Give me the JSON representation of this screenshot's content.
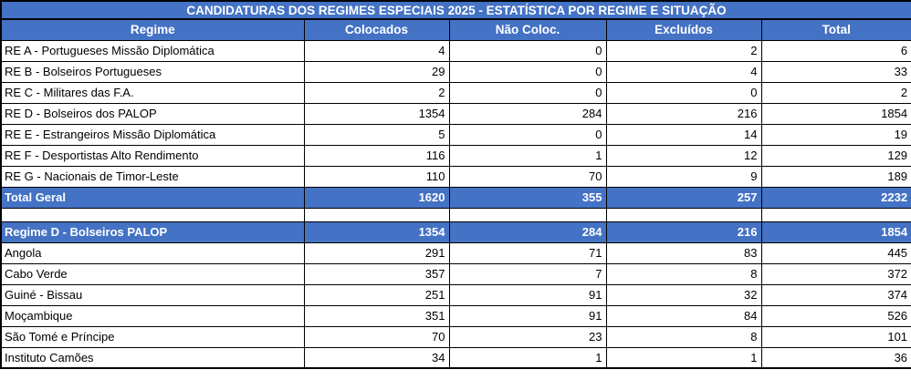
{
  "title": "CANDIDATURAS DOS REGIMES ESPECIAIS 2025 - ESTATÍSTICA POR REGIME E SITUAÇÃO",
  "columns": [
    "Regime",
    "Colocados",
    "Não Coloc.",
    "Excluídos",
    "Total"
  ],
  "colors": {
    "accent_blue": "#4472C4",
    "grid_border": "#000000",
    "summary_text": "#FFFFFF"
  },
  "rows": [
    {
      "style": "normal",
      "label": "RE A - Portugueses Missão Diplomática",
      "values": [
        "4",
        "0",
        "2",
        "6"
      ]
    },
    {
      "style": "normal",
      "label": "RE B - Bolseiros Portugueses",
      "values": [
        "29",
        "0",
        "4",
        "33"
      ]
    },
    {
      "style": "normal",
      "label": "RE C - Militares das F.A.",
      "values": [
        "2",
        "0",
        "0",
        "2"
      ]
    },
    {
      "style": "normal",
      "label": "RE D - Bolseiros dos PALOP",
      "values": [
        "1354",
        "284",
        "216",
        "1854"
      ]
    },
    {
      "style": "normal",
      "label": "RE E - Estrangeiros Missão Diplomática",
      "values": [
        "5",
        "0",
        "14",
        "19"
      ]
    },
    {
      "style": "normal",
      "label": "RE F - Desportistas Alto Rendimento",
      "values": [
        "116",
        "1",
        "12",
        "129"
      ]
    },
    {
      "style": "normal",
      "label": "RE G - Nacionais de Timor-Leste",
      "values": [
        "110",
        "70",
        "9",
        "189"
      ]
    },
    {
      "style": "summary",
      "label": "Total Geral",
      "values": [
        "1620",
        "355",
        "257",
        "2232"
      ]
    },
    {
      "style": "spacer",
      "label": "",
      "values": [
        "",
        "",
        "",
        ""
      ]
    },
    {
      "style": "summary",
      "label": "Regime D - Bolseiros PALOP",
      "values": [
        "1354",
        "284",
        "216",
        "1854"
      ]
    },
    {
      "style": "normal",
      "label": "Angola",
      "values": [
        "291",
        "71",
        "83",
        "445"
      ]
    },
    {
      "style": "normal",
      "label": "Cabo Verde",
      "values": [
        "357",
        "7",
        "8",
        "372"
      ]
    },
    {
      "style": "normal",
      "label": "Guiné - Bissau",
      "values": [
        "251",
        "91",
        "32",
        "374"
      ]
    },
    {
      "style": "normal",
      "label": "Moçambique",
      "values": [
        "351",
        "91",
        "84",
        "526"
      ]
    },
    {
      "style": "normal",
      "label": "São Tomé e Príncipe",
      "values": [
        "70",
        "23",
        "8",
        "101"
      ]
    },
    {
      "style": "normal",
      "label": "Instituto Camões",
      "values": [
        "34",
        "1",
        "1",
        "36"
      ]
    }
  ]
}
